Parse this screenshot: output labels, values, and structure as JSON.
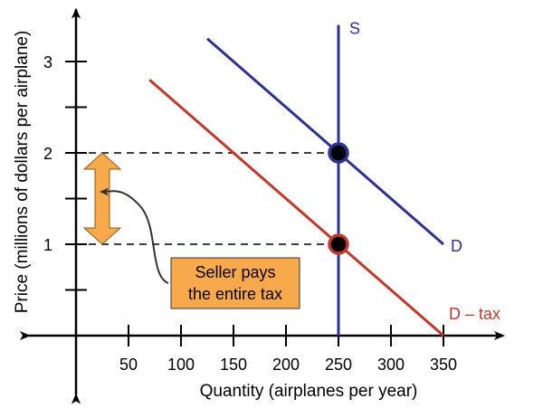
{
  "chart_data": {
    "type": "line",
    "xlabel": "Quantity (airplanes per year)",
    "ylabel": "Price (millions of dollars per airplane)",
    "xlim": [
      -50,
      400
    ],
    "ylim": [
      -0.55,
      3.55
    ],
    "x_ticks": [
      50,
      100,
      150,
      200,
      250,
      300,
      350
    ],
    "y_ticks": [
      1,
      2,
      3
    ],
    "y_minor_ticks": [
      0.5,
      1.5,
      2.5
    ],
    "series": [
      {
        "name": "S",
        "color": "#2e3192",
        "points": [
          [
            250,
            3.4
          ],
          [
            250,
            0
          ]
        ]
      },
      {
        "name": "D",
        "color": "#2e3192",
        "points": [
          [
            125,
            3.25
          ],
          [
            350,
            1.0
          ]
        ]
      },
      {
        "name": "D – tax",
        "color": "#c0392b",
        "points": [
          [
            70,
            2.8
          ],
          [
            350,
            0
          ]
        ]
      }
    ],
    "equilibria": [
      {
        "x": 250,
        "y": 2,
        "ring_color": "#2e3192"
      },
      {
        "x": 250,
        "y": 1,
        "ring_color": "#c0392b"
      }
    ],
    "guide_lines": [
      {
        "y": 2,
        "x_from": 0,
        "x_to": 250
      },
      {
        "y": 1,
        "x_from": 0,
        "x_to": 250
      }
    ],
    "tax_arrow": {
      "x": 25,
      "y_from": 1,
      "y_to": 2,
      "color": "#f7a94b"
    },
    "annotation": {
      "lines": [
        "Seller pays",
        "the entire tax"
      ],
      "fill": "#f7a94b"
    }
  }
}
